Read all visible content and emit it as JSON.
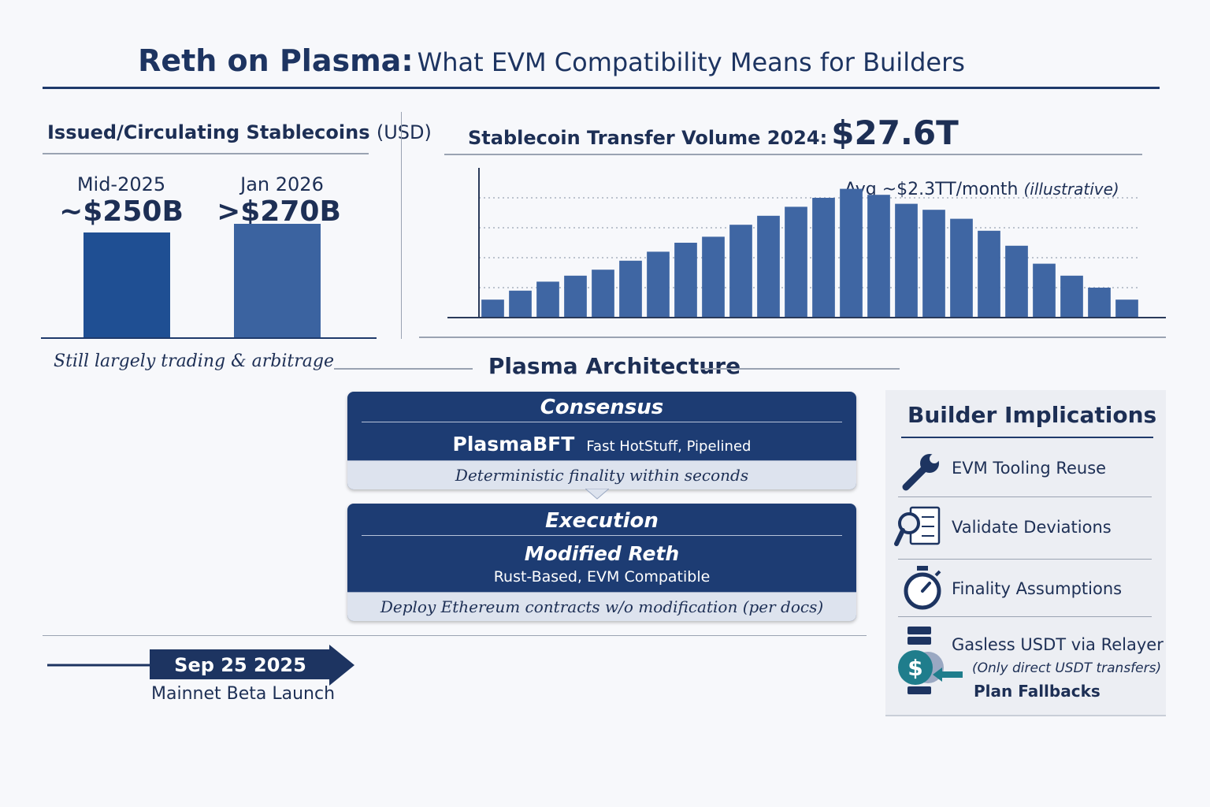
{
  "title": {
    "bold": "Reth on Plasma:",
    "rest": "What EVM Compatibility Means for Builders"
  },
  "colors": {
    "navy": "#1d3c73",
    "bar_dark": "#1f4f93",
    "bar_mid": "#3b63a0",
    "bar": "#3f66a3",
    "teal": "#1f7d8c"
  },
  "chart_data": [
    {
      "type": "bar",
      "title": "Issued/Circulating Stablecoins (USD)",
      "categories": [
        "Mid-2025",
        "Jan 2026"
      ],
      "values": [
        250,
        270
      ],
      "data_labels": [
        "~$250B",
        ">$270B"
      ],
      "ylabel": "",
      "ylim": [
        0,
        300
      ],
      "grid": false,
      "annotation": "Still largely trading & arbitrage"
    },
    {
      "type": "bar",
      "title": "Stablecoin Transfer Volume 2024: $27.6T",
      "series": [
        {
          "values": [
            0.6,
            0.9,
            1.2,
            1.4,
            1.6,
            1.9,
            2.2,
            2.5,
            2.7,
            3.1,
            3.4,
            3.7,
            4.0,
            4.3,
            4.1,
            3.8,
            3.6,
            3.3,
            2.9,
            2.4,
            1.8,
            1.4,
            1.0,
            0.6
          ]
        }
      ],
      "ylim": [
        0,
        5
      ],
      "grid": true,
      "grid_style": "dotted",
      "annotation": "Avg ~$2.3TT/month",
      "annotation_note": "(illustrative)"
    }
  ],
  "left": {
    "heading_main": "Issued/Circulating Stablecoins",
    "heading_unit": "(USD)",
    "note": "Still largely trading & arbitrage"
  },
  "volume": {
    "heading_label": "Stablecoin Transfer Volume 2024:",
    "heading_value": "$27.6T",
    "avg_label": "Avg ~$2.3TT/month",
    "avg_note": "(illustrative)"
  },
  "architecture": {
    "heading": "Plasma Architecture",
    "consensus": {
      "title": "Consensus",
      "main": "PlasmaBFT",
      "sub": "Fast HotStuff, Pipelined",
      "foot": "Deterministic finality within seconds"
    },
    "execution": {
      "title": "Execution",
      "main": "Modified Reth",
      "sub": "Rust-Based,  EVM Compatible",
      "foot": "Deploy Ethereum contracts w/o modification (per docs)"
    }
  },
  "builder": {
    "heading": "Builder Implications",
    "items": [
      {
        "label": "EVM Tooling Reuse",
        "icon": "wrench-icon"
      },
      {
        "label": "Validate Deviations",
        "icon": "magnifier-checklist-icon"
      },
      {
        "label": "Finality Assumptions",
        "icon": "stopwatch-icon"
      },
      {
        "label": "Gasless USDT via Relayer",
        "note": "(Only direct USDT transfers)",
        "extra": "Plan Fallbacks",
        "icon": "dollar-relayer-icon"
      }
    ]
  },
  "timeline": {
    "date": "Sep 25 2025",
    "caption": "Mainnet Beta Launch"
  }
}
